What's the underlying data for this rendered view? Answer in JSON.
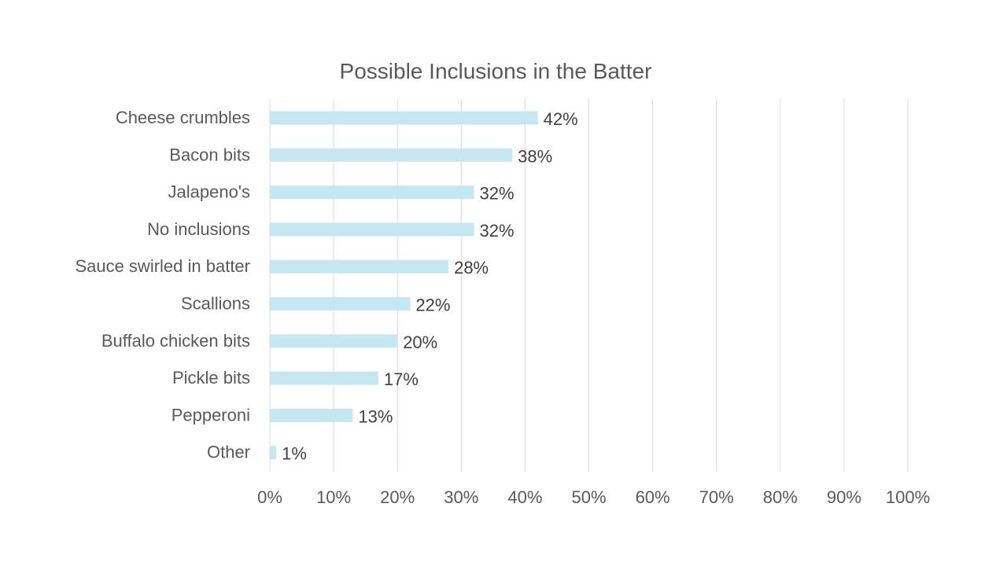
{
  "chart_data": {
    "type": "bar",
    "orientation": "horizontal",
    "title": "Possible Inclusions in the Batter",
    "categories": [
      "Cheese crumbles",
      "Bacon bits",
      "Jalapeno's",
      "No inclusions",
      "Sauce swirled in batter",
      "Scallions",
      "Buffalo chicken bits",
      "Pickle bits",
      "Pepperoni",
      "Other"
    ],
    "values": [
      42,
      38,
      32,
      32,
      28,
      22,
      20,
      17,
      13,
      1
    ],
    "data_labels": [
      "42%",
      "38%",
      "32%",
      "32%",
      "28%",
      "22%",
      "20%",
      "17%",
      "13%",
      "1%"
    ],
    "xlim": [
      0,
      100
    ],
    "x_ticks": [
      "0%",
      "10%",
      "20%",
      "30%",
      "40%",
      "50%",
      "60%",
      "70%",
      "80%",
      "90%",
      "100%"
    ],
    "xlabel": "",
    "ylabel": "",
    "grid": true,
    "legend": "none",
    "bar_color": "#c5e7f1"
  }
}
